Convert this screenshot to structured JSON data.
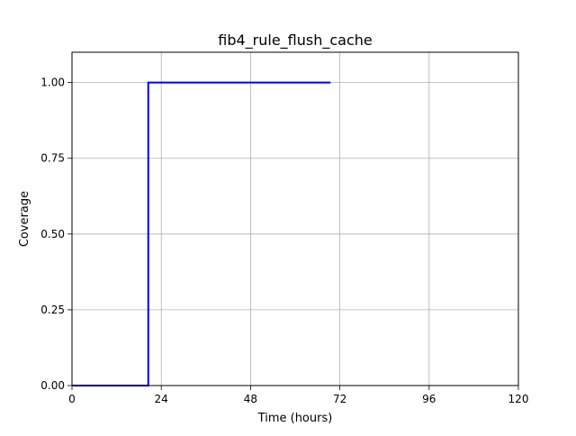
{
  "chart_data": {
    "type": "line",
    "title": "fib4_rule_flush_cache",
    "xlabel": "Time (hours)",
    "ylabel": "Coverage",
    "xlim": [
      0,
      120
    ],
    "ylim": [
      0,
      1.1
    ],
    "xticks": [
      0,
      24,
      48,
      72,
      96,
      120
    ],
    "xtick_labels": [
      "0",
      "24",
      "48",
      "72",
      "96",
      "120"
    ],
    "yticks": [
      0,
      0.25,
      0.5,
      0.75,
      1.0
    ],
    "ytick_labels": [
      "0.00",
      "0.25",
      "0.50",
      "0.75",
      "1.00"
    ],
    "grid": true,
    "legend": "none",
    "series": [
      {
        "color": "#0000ff",
        "step": true,
        "x": [
          0,
          20.5,
          20.5,
          69.5
        ],
        "y": [
          0,
          0,
          1.0,
          1.0
        ]
      }
    ]
  }
}
